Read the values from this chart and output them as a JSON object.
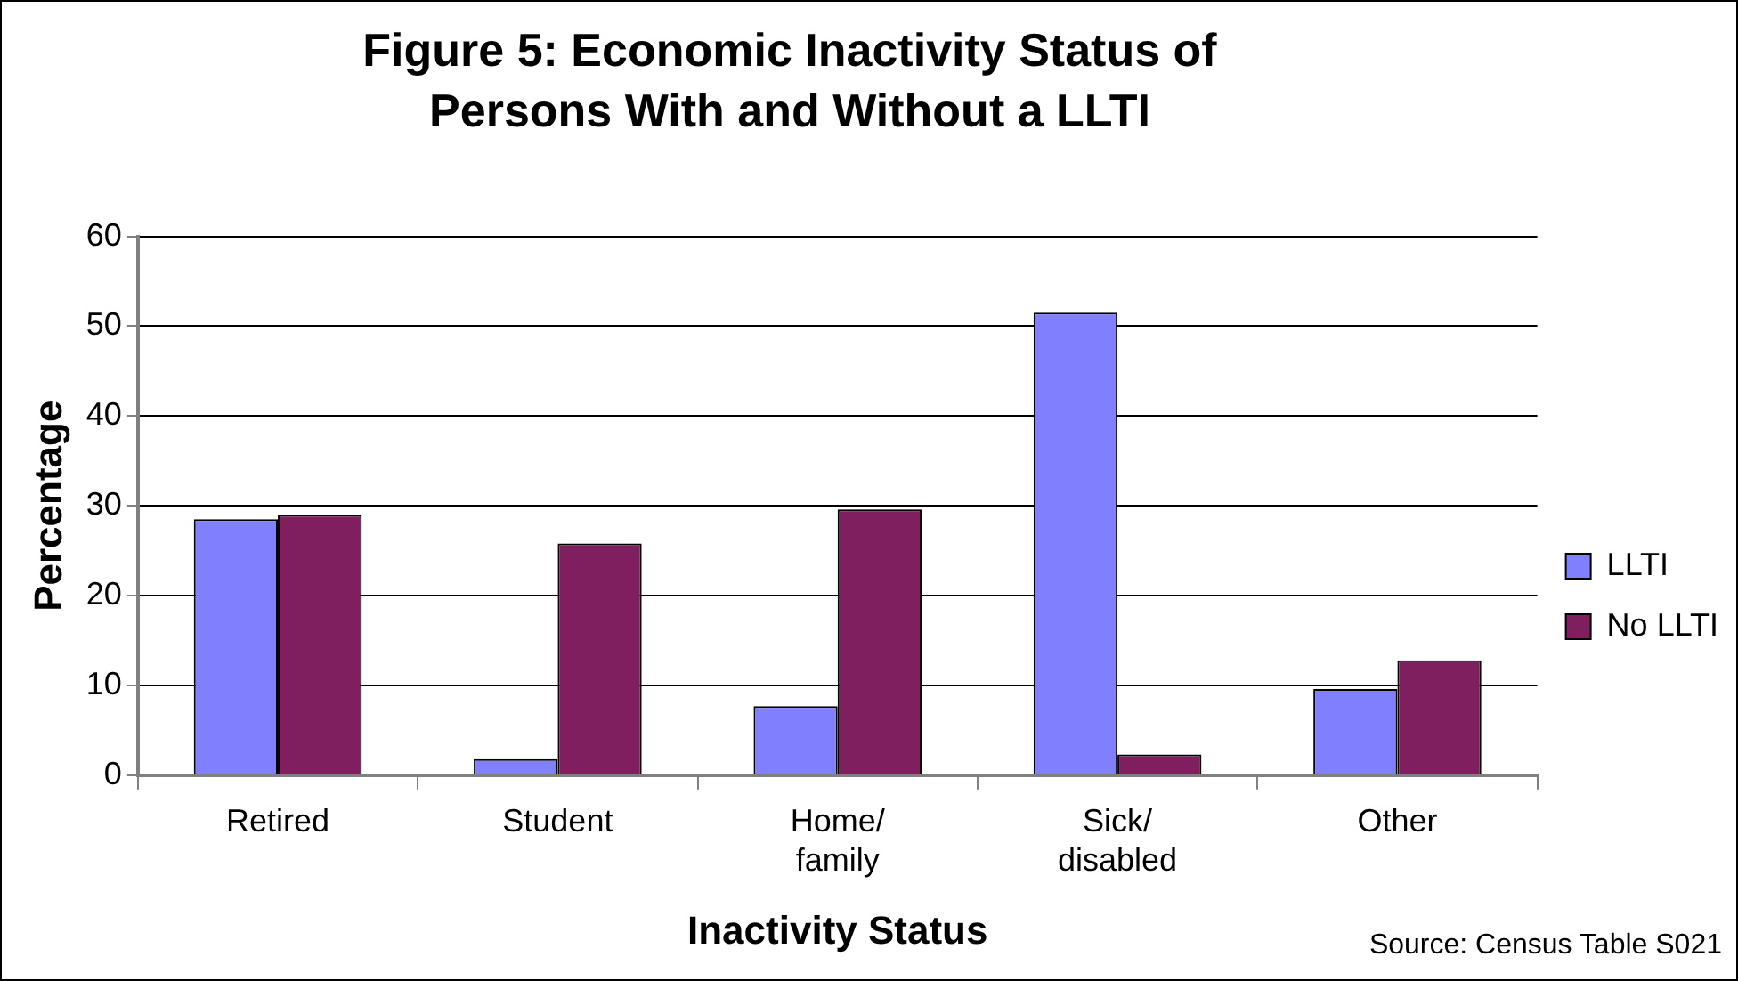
{
  "chart_data": {
    "type": "bar",
    "title": "Figure 5: Economic Inactivity Status of Persons With and Without a LLTI",
    "xlabel": "Inactivity Status",
    "ylabel": "Percentage",
    "categories": [
      "Retired",
      "Student",
      "Home/\nfamily",
      "Sick/\ndisabled",
      "Other"
    ],
    "series": [
      {
        "name": "LLTI",
        "color": "#8080ff",
        "values": [
          28.5,
          1.8,
          7.7,
          51.5,
          9.6
        ]
      },
      {
        "name": "No LLTI",
        "color": "#7f1f5f",
        "values": [
          29,
          25.8,
          29.6,
          2.3,
          12.8
        ]
      }
    ],
    "ylim": [
      0,
      60
    ],
    "yticks": [
      0,
      10,
      20,
      30,
      40,
      50,
      60
    ],
    "grid": "y",
    "legend": "right",
    "annotations": [
      "Source: Census Table S021"
    ]
  }
}
